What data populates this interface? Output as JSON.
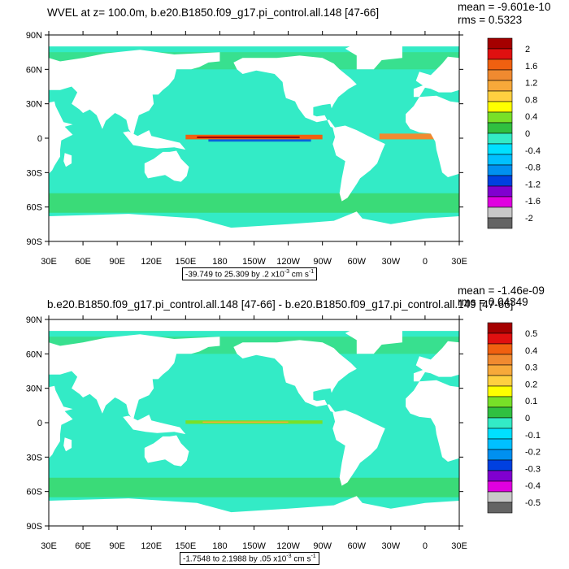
{
  "panels": [
    {
      "title": "WVEL at z= 100.0m, b.e20.B1850.f09_g17.pi_control.all.148 [47-66]",
      "mean_label": "mean = -9.601e-10",
      "rms_label": "rms = 0.5323",
      "range_text": "-39.749 to 25.309 by .2 x10",
      "range_exp": "-3",
      "range_units": " cm s",
      "range_units_exp": "-1",
      "legend_levels": [
        "2",
        "1.6",
        "1.2",
        "0.8",
        "0.4",
        "0",
        "-0.4",
        "-0.8",
        "-1.2",
        "-1.6",
        "-2"
      ]
    },
    {
      "title": "b.e20.B1850.f09_g17.pi_control.all.148 [47-66] - b.e20.B1850.f09_g17.pi_control.all.149 [47-66]",
      "mean_label": "mean = -1.46e-09",
      "rms_label": "rms = 0.04349",
      "range_text": "-1.7548 to 2.1988 by .05 x10",
      "range_exp": "-3",
      "range_units": " cm s",
      "range_units_exp": "-1",
      "legend_levels": [
        "0.5",
        "0.4",
        "0.3",
        "0.2",
        "0.1",
        "0",
        "-0.1",
        "-0.2",
        "-0.3",
        "-0.4",
        "-0.5"
      ]
    }
  ],
  "lat_labels": [
    "90N",
    "60N",
    "30N",
    "0",
    "30S",
    "60S",
    "90S"
  ],
  "lon_labels": [
    "30E",
    "60E",
    "90E",
    "120E",
    "150E",
    "180",
    "150W",
    "120W",
    "90W",
    "60W",
    "30W",
    "0",
    "30E"
  ],
  "colors": {
    "ocean_base": "#33ebc6",
    "ocean_green": "#3cd86a",
    "legend_palette": [
      "#a50000",
      "#e01010",
      "#f06010",
      "#f08a30",
      "#f7a93a",
      "#ffd040",
      "#ffff00",
      "#78e028",
      "#30c040",
      "#33ebc6",
      "#00e0ff",
      "#00c0ff",
      "#0090f0",
      "#0040e0",
      "#8000d0",
      "#e000e0",
      "#c8c8c8",
      "#646464"
    ]
  }
}
